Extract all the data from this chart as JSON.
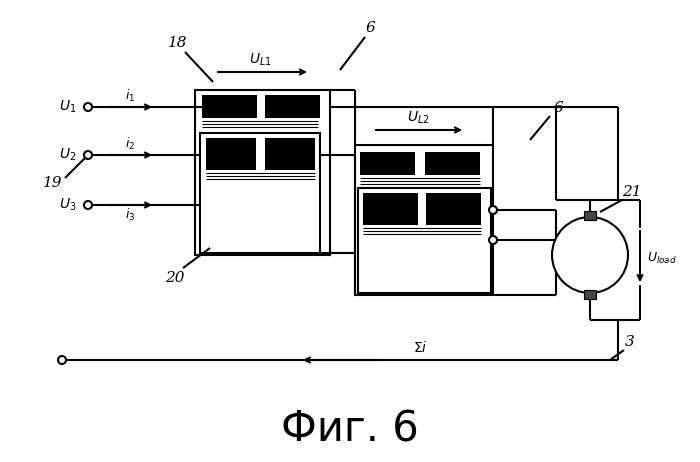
{
  "title": "Фиг. 6",
  "bg_color": "#ffffff",
  "title_fontsize": 30,
  "fig_width": 7.0,
  "fig_height": 4.62,
  "lw": 1.5
}
